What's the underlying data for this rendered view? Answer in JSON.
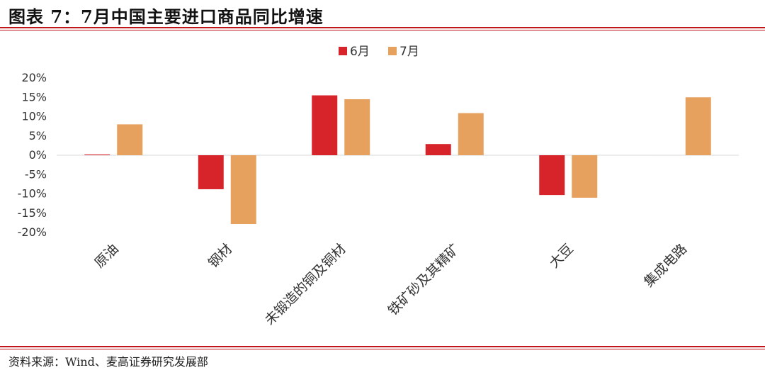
{
  "header": {
    "title": "图表 7：7月中国主要进口商品同比增速"
  },
  "footer": {
    "source": "资料来源：Wind、麦高证券研究发展部"
  },
  "colors": {
    "june": "#d7232a",
    "july": "#e6a15f",
    "rule": "#c0161b"
  },
  "chart_data": {
    "type": "bar",
    "categories": [
      "原油",
      "钢材",
      "未锻造的铜及铜材",
      "铁矿砂及其精矿",
      "大豆",
      "集成电路"
    ],
    "series": [
      {
        "name": "6月",
        "values": [
          0.2,
          -8.8,
          15.5,
          2.9,
          -10.3,
          0.0
        ]
      },
      {
        "name": "7月",
        "values": [
          8.0,
          -17.8,
          14.5,
          10.9,
          -11.0,
          15.0
        ]
      }
    ],
    "y_ticks": [
      "20%",
      "15%",
      "10%",
      "5%",
      "0%",
      "-5%",
      "-10%",
      "-15%",
      "-20%"
    ],
    "ylim": [
      -20,
      20
    ],
    "grid": false,
    "legend_position": "top-center"
  }
}
